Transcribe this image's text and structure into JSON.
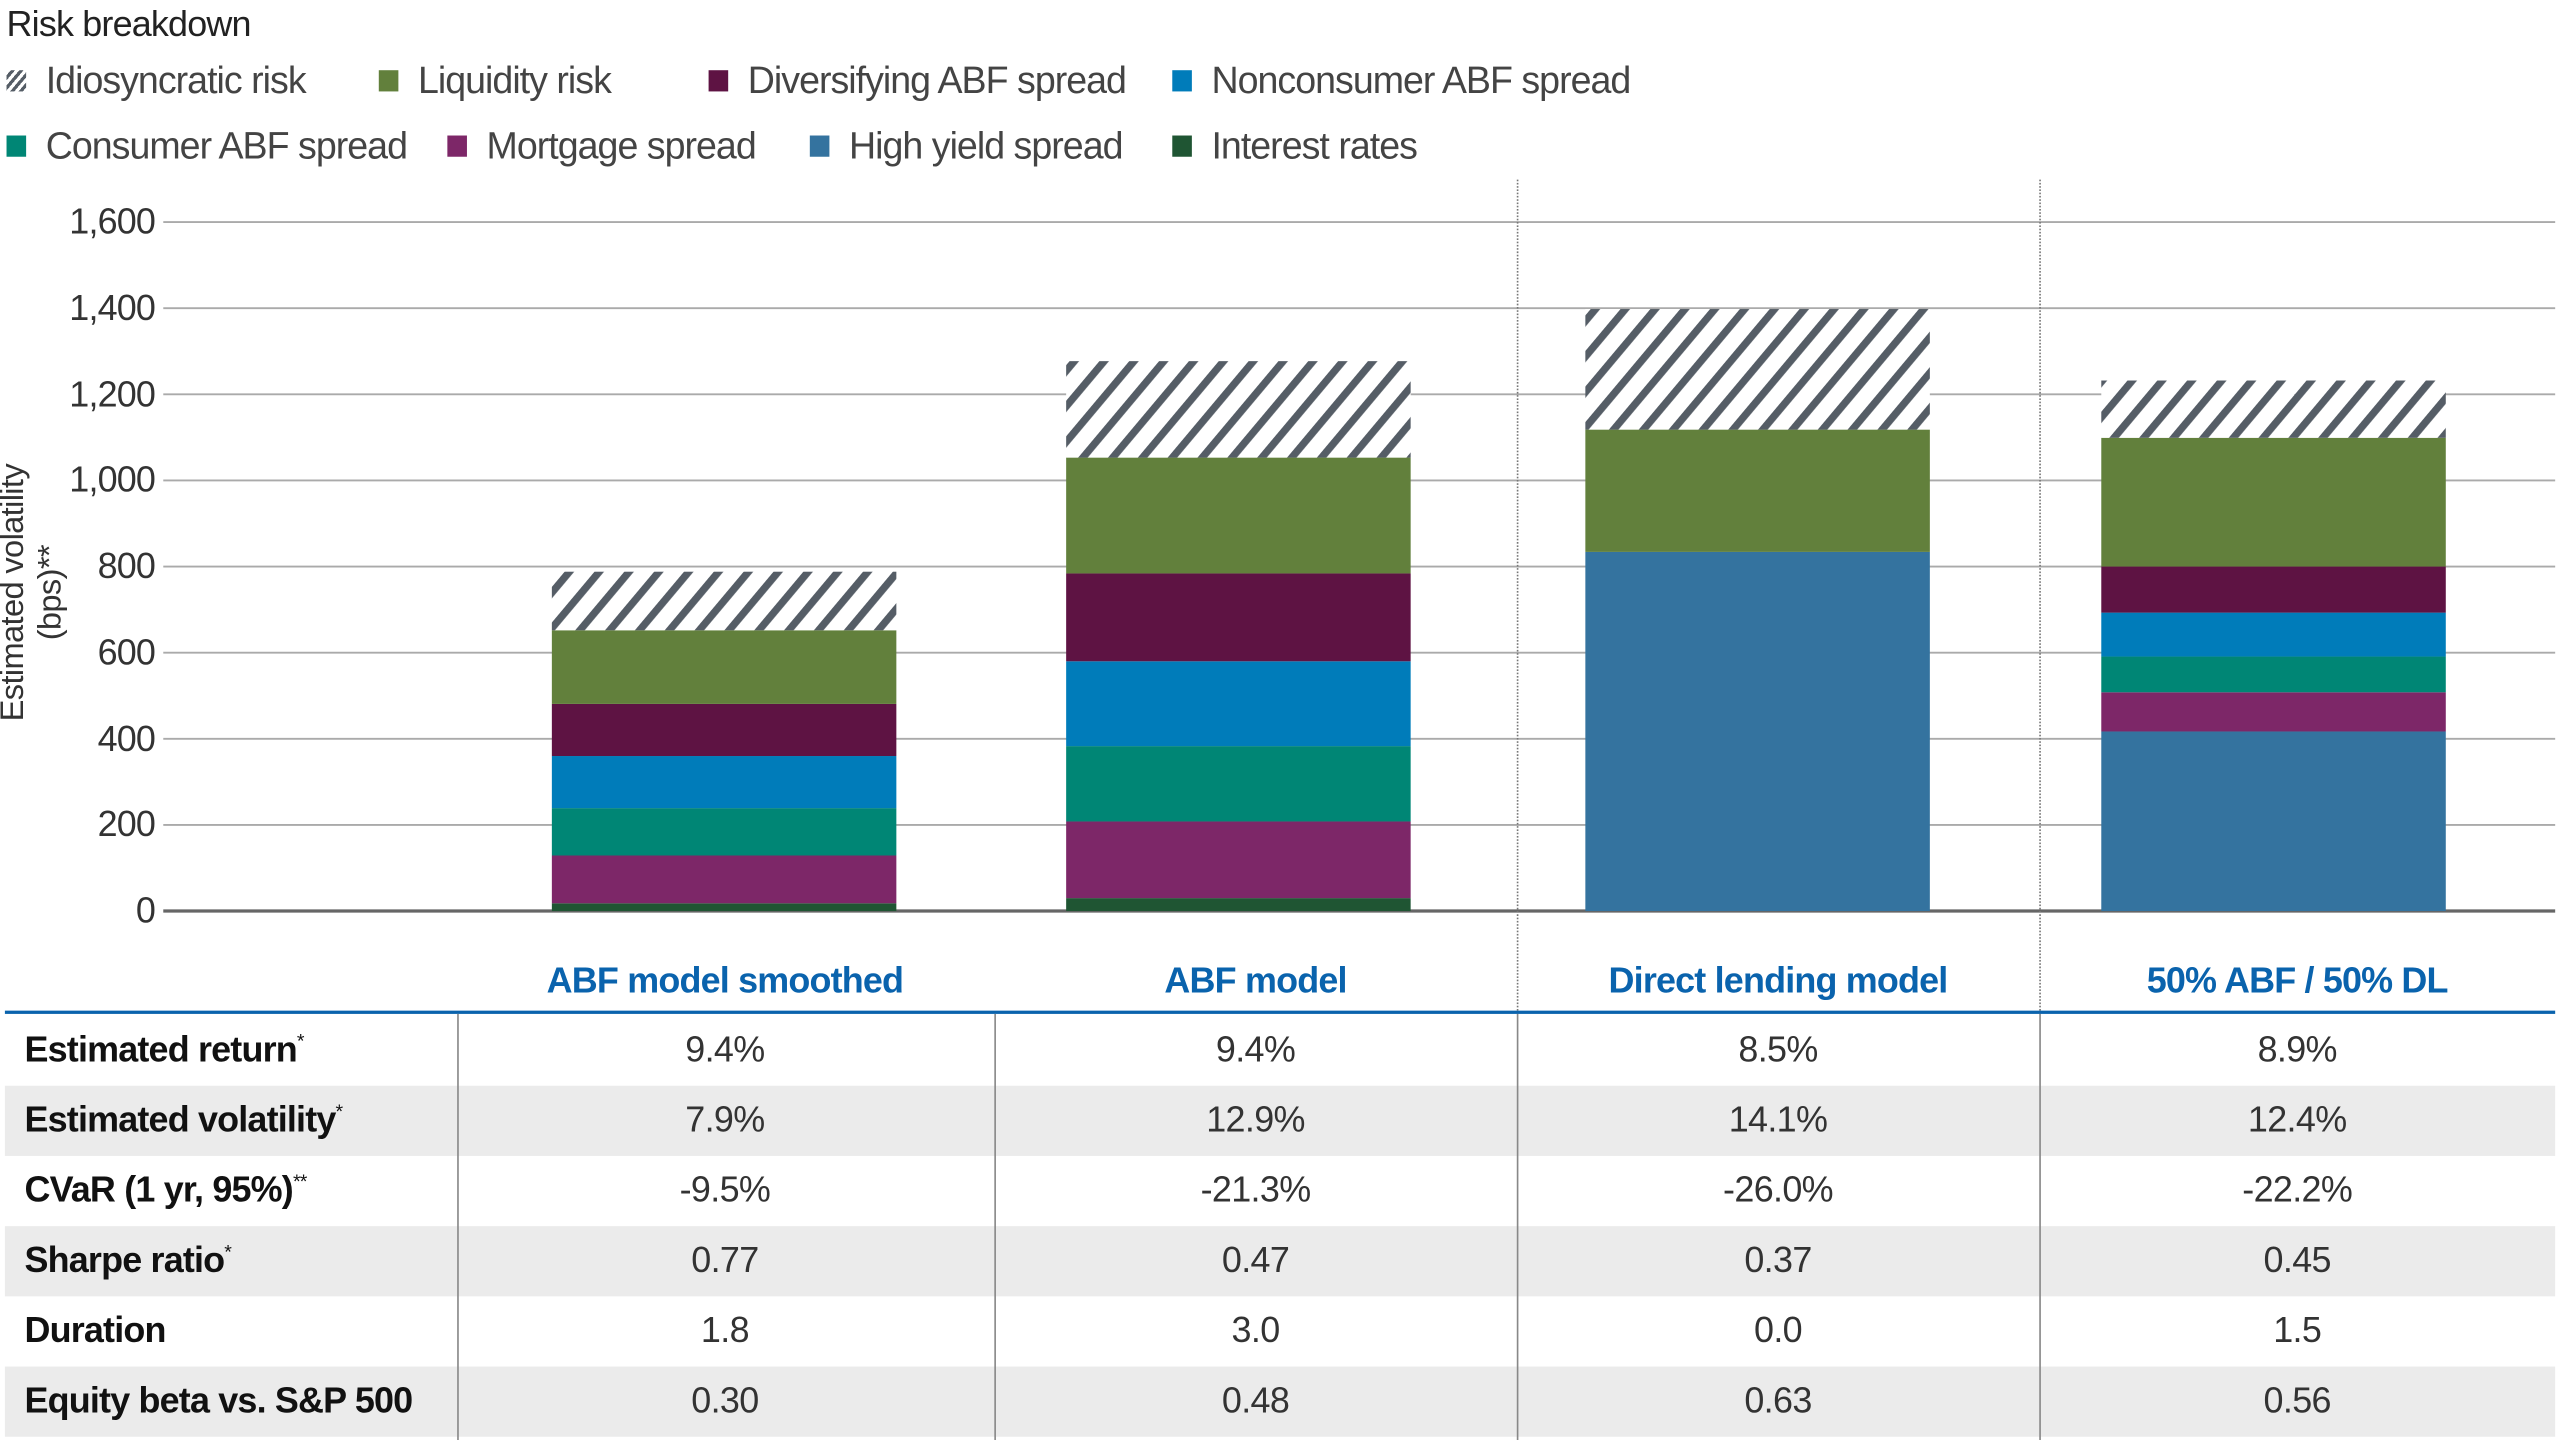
{
  "chart_data": {
    "type": "bar",
    "stacked": true,
    "title": "Risk breakdown",
    "ylabel": "Estimated volatility (bps)**",
    "ylim": [
      0,
      1600
    ],
    "yticks": [
      "0",
      "200",
      "400",
      "600",
      "800",
      "1,000",
      "1,200",
      "1,400",
      "1,600"
    ],
    "grid": true,
    "legend_position": "top-left",
    "categories": [
      "ABF model smoothed",
      "ABF model",
      "Direct lending model",
      "50% ABF / 50% DL"
    ],
    "series": [
      {
        "name": "Interest rates",
        "color": "#1f5533",
        "values": [
          18,
          30,
          0,
          0
        ]
      },
      {
        "name": "High yield spread",
        "color": "#34739f",
        "values": [
          0,
          0,
          834,
          417
        ]
      },
      {
        "name": "Mortgage spread",
        "color": "#7d2768",
        "values": [
          111,
          178,
          0,
          91
        ]
      },
      {
        "name": "Consumer ABF spread",
        "color": "#008675",
        "values": [
          110,
          175,
          0,
          83
        ]
      },
      {
        "name": "Nonconsumer ABF spread",
        "color": "#007cba",
        "values": [
          121,
          197,
          0,
          102
        ]
      },
      {
        "name": "Diversifying ABF spread",
        "color": "#5e1343",
        "values": [
          121,
          204,
          0,
          107
        ]
      },
      {
        "name": "Liquidity risk",
        "color": "#62803c",
        "values": [
          171,
          269,
          284,
          299
        ]
      },
      {
        "name": "Idiosyncratic risk",
        "color": "#555d66",
        "pattern": "hatch",
        "values": [
          136,
          224,
          280,
          133
        ]
      }
    ],
    "legend_order": [
      "Idiosyncratic risk",
      "Liquidity risk",
      "Diversifying ABF spread",
      "Nonconsumer ABF spread",
      "Consumer ABF spread",
      "Mortgage spread",
      "High yield spread",
      "Interest rates"
    ]
  },
  "table": {
    "rows": [
      {
        "label": "Estimated return",
        "mark": "*",
        "values": [
          "9.4%",
          "9.4%",
          "8.5%",
          "8.9%"
        ]
      },
      {
        "label": "Estimated volatility",
        "mark": "*",
        "values": [
          "7.9%",
          "12.9%",
          "14.1%",
          "12.4%"
        ]
      },
      {
        "label": "CVaR (1 yr, 95%)",
        "mark": "**",
        "values": [
          "-9.5%",
          "-21.3%",
          "-26.0%",
          "-22.2%"
        ]
      },
      {
        "label": "Sharpe ratio",
        "mark": "*",
        "values": [
          "0.77",
          "0.47",
          "0.37",
          "0.45"
        ]
      },
      {
        "label": "Duration",
        "mark": "",
        "values": [
          "1.8",
          "3.0",
          "0.0",
          "1.5"
        ]
      },
      {
        "label": "Equity beta vs. S&P 500",
        "mark": "",
        "values": [
          "0.30",
          "0.48",
          "0.63",
          "0.56"
        ]
      }
    ]
  },
  "colors": {
    "header_blue": "#0a63ad",
    "alt_row": "#ebebeb"
  }
}
